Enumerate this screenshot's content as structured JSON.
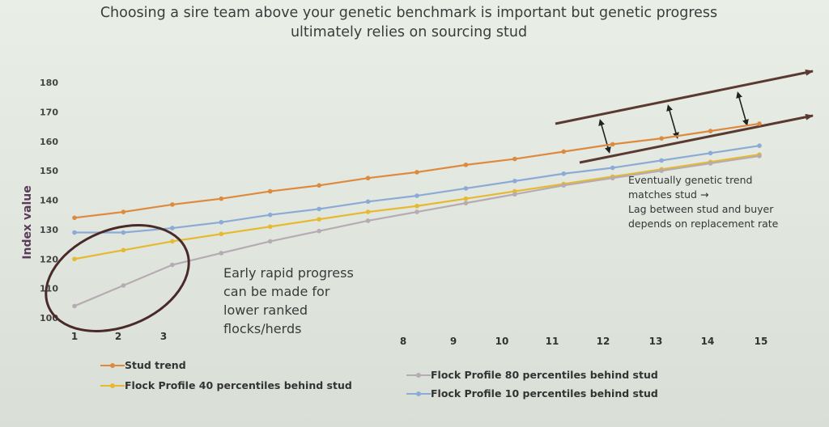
{
  "title": {
    "line1": "Choosing a sire team above your genetic benchmark is important but genetic progress",
    "line2": "ultimately relies on sourcing stud"
  },
  "chart_data": {
    "type": "line",
    "ylabel": "Index value",
    "xlabel": "",
    "ylim": [
      100,
      180
    ],
    "yticks": [
      {
        "value": 100,
        "label": "100"
      },
      {
        "value": 110,
        "label": "110"
      },
      {
        "value": 120,
        "label": "120"
      },
      {
        "value": 130,
        "label": "130"
      },
      {
        "value": 140,
        "label": "140"
      },
      {
        "value": 150,
        "label": "150"
      },
      {
        "value": 160,
        "label": "160"
      },
      {
        "value": 170,
        "label": "170"
      },
      {
        "value": 180,
        "label": "180"
      }
    ],
    "xticks": [
      "1",
      "2",
      "3",
      "8",
      "9",
      "10",
      "11",
      "12",
      "13",
      "14",
      "15"
    ],
    "x": [
      1,
      2,
      3,
      4,
      5,
      6,
      7,
      8,
      9,
      10,
      11,
      12,
      13,
      14,
      15
    ],
    "grid": false,
    "legend_position": "bottom",
    "series": [
      {
        "name": "Stud trend",
        "color": "#de8a3e",
        "values": [
          134,
          136,
          138.5,
          140.5,
          143,
          145,
          147.5,
          149.5,
          152,
          154,
          156.5,
          159,
          161,
          163.5,
          166
        ]
      },
      {
        "name": "Flock Profile 40 percentiles behind stud",
        "color": "#e6b92f",
        "values": [
          120,
          123,
          126,
          128.5,
          131,
          133.5,
          136,
          138,
          140.5,
          143,
          145.5,
          148,
          150.5,
          153,
          155.5
        ]
      },
      {
        "name": "Flock Profile 80 percentiles behind stud",
        "color": "#b6abb2",
        "values": [
          104,
          111,
          118,
          122,
          126,
          129.5,
          133,
          136,
          139,
          142,
          145,
          147.5,
          150,
          152.5,
          155
        ]
      },
      {
        "name": "Flock Profile 10 percentiles behind stud",
        "color": "#8caad6",
        "values": [
          129,
          129,
          130.5,
          132.5,
          135,
          137,
          139.5,
          141.5,
          144,
          146.5,
          149,
          151,
          153.5,
          156,
          158.5
        ]
      }
    ],
    "annotations": {
      "right_note": [
        "Eventually genetic trend",
        "matches stud →",
        "Lag between stud and buyer",
        "depends on replacement rate"
      ],
      "early_note": [
        "Early rapid progress",
        "can be made for",
        "lower ranked",
        "flocks/herds"
      ]
    }
  }
}
